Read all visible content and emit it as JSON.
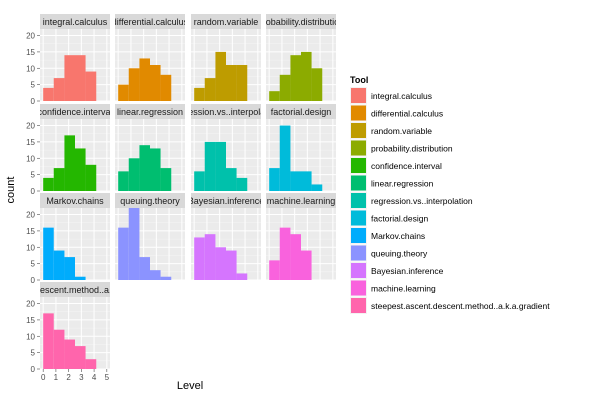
{
  "chart_data": {
    "type": "bar",
    "facet": "wrap",
    "xlabel": "Level",
    "ylabel": "count",
    "x_ticks": [
      0,
      1,
      2,
      3,
      4,
      5
    ],
    "ylim": [
      0,
      22
    ],
    "y_ticks": [
      0,
      5,
      10,
      15,
      20
    ],
    "bin_edges": [
      0,
      0.83,
      1.67,
      2.5,
      3.33,
      4.17,
      5
    ],
    "grid": true,
    "legend": {
      "title": "Tool",
      "placement": "right"
    },
    "panels": [
      {
        "label": "integral.calculus",
        "name": "integral.calculus",
        "color": "#F8766D",
        "counts": [
          4,
          7,
          14,
          14,
          9,
          0
        ]
      },
      {
        "label": "differential.calculus",
        "name": "differential.calculus",
        "color": "#E18A00",
        "counts": [
          5,
          10,
          13,
          11,
          8,
          0
        ]
      },
      {
        "label": "random.variable",
        "name": "random.variable",
        "color": "#BE9C00",
        "counts": [
          4,
          7,
          15,
          11,
          11,
          0
        ]
      },
      {
        "label": "probability.distribution",
        "name": "probability.distribution",
        "color": "#8CAB00",
        "counts": [
          3,
          8,
          14,
          15,
          10,
          0
        ]
      },
      {
        "label": "confidence.interval",
        "name": "confidence.interval",
        "color": "#24B700",
        "counts": [
          4,
          7,
          17,
          13,
          8,
          0
        ]
      },
      {
        "label": "linear.regression",
        "name": "linear.regression",
        "color": "#00BE70",
        "counts": [
          6,
          10,
          14,
          13,
          7,
          0
        ]
      },
      {
        "label": "regression.vs..interpolation",
        "name": "regression.vs..interpolation",
        "color": "#00C1AB",
        "counts": [
          6,
          15,
          15,
          7,
          4,
          0
        ]
      },
      {
        "label": "factorial.design",
        "name": "factorial.design",
        "color": "#00BBDA",
        "counts": [
          7,
          20,
          6,
          6,
          2,
          0
        ]
      },
      {
        "label": "Markov.chains",
        "name": "Markov.chains",
        "color": "#00ACFC",
        "counts": [
          16,
          9,
          7,
          1,
          0,
          0
        ]
      },
      {
        "label": "queuing.theory",
        "name": "queuing.theory",
        "color": "#8B93FF",
        "counts": [
          16,
          22,
          7,
          3,
          1,
          0
        ]
      },
      {
        "label": "Bayesian.inference",
        "name": "Bayesian.inference",
        "color": "#D575FE",
        "counts": [
          13,
          14,
          10,
          9,
          2,
          0
        ]
      },
      {
        "label": "machine.learning",
        "name": "machine.learning",
        "color": "#F962DD",
        "counts": [
          6,
          16,
          14,
          9,
          0,
          0
        ]
      },
      {
        "label": "est.ascent.descent.method..a.k.a.gradient",
        "name": "steepest.ascent.descent.method..a.k.a.gradient",
        "color": "#FF65AC",
        "counts": [
          17,
          12,
          9,
          7,
          3,
          0
        ]
      }
    ]
  }
}
